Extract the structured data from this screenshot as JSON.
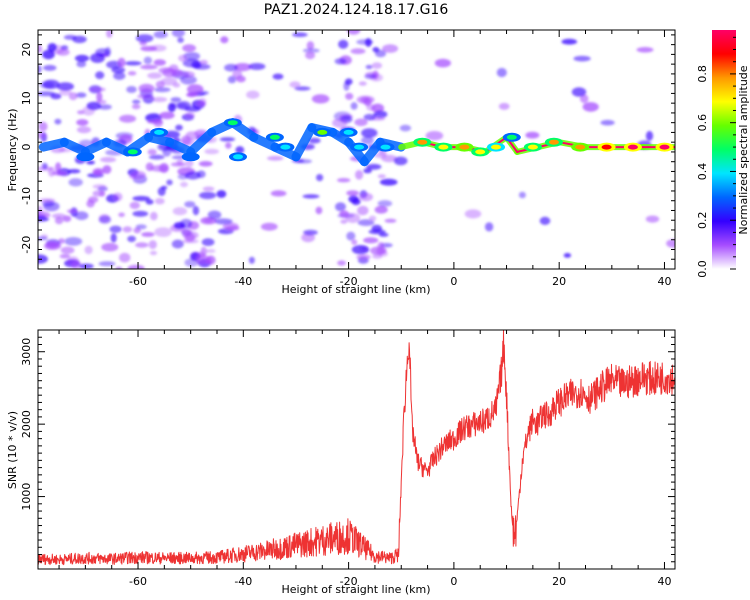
{
  "title": "PAZ1.2024.124.18.17.G16",
  "chart_data": [
    {
      "type": "heatmap",
      "xlabel": "Height of straight line (km)",
      "ylabel": "Frequency (Hz)",
      "xlim": [
        -79,
        42
      ],
      "ylim": [
        -25,
        24
      ],
      "xticks": [
        -60,
        -40,
        -20,
        0,
        20,
        40
      ],
      "yticks": [
        20,
        10,
        0,
        -10,
        -20
      ],
      "colorbar": {
        "label": "Normalized spectral amplitude",
        "range": [
          0,
          0.98
        ],
        "ticks": [
          0.0,
          0.2,
          0.4,
          0.6,
          0.8
        ],
        "colormap": [
          "#ffffff",
          "#a64dff",
          "#3300ff",
          "#0066ff",
          "#00e5ff",
          "#00ff66",
          "#66ff00",
          "#ffff00",
          "#ff9900",
          "#ff0000",
          "#ff0066"
        ]
      },
      "ridge": [
        {
          "x": -78,
          "y": 0
        },
        {
          "x": -74,
          "y": 1
        },
        {
          "x": -70,
          "y": -1
        },
        {
          "x": -66,
          "y": 1
        },
        {
          "x": -62,
          "y": -1
        },
        {
          "x": -58,
          "y": 2
        },
        {
          "x": -54,
          "y": 1
        },
        {
          "x": -50,
          "y": -1
        },
        {
          "x": -46,
          "y": 3
        },
        {
          "x": -42,
          "y": 5
        },
        {
          "x": -38,
          "y": 2
        },
        {
          "x": -34,
          "y": 0
        },
        {
          "x": -30,
          "y": -2
        },
        {
          "x": -27,
          "y": 4
        },
        {
          "x": -23,
          "y": 3
        },
        {
          "x": -20,
          "y": 1
        },
        {
          "x": -17,
          "y": -3
        },
        {
          "x": -14,
          "y": 1
        },
        {
          "x": -10,
          "y": 0
        },
        {
          "x": -6,
          "y": 1
        },
        {
          "x": -2,
          "y": 0
        },
        {
          "x": 2,
          "y": 0
        },
        {
          "x": 6,
          "y": -1
        },
        {
          "x": 10,
          "y": 2
        },
        {
          "x": 12,
          "y": -1
        },
        {
          "x": 16,
          "y": 0
        },
        {
          "x": 20,
          "y": 1
        },
        {
          "x": 25,
          "y": 0
        },
        {
          "x": 30,
          "y": 0
        },
        {
          "x": 36,
          "y": 0
        },
        {
          "x": 42,
          "y": 0
        }
      ],
      "blobs": [
        {
          "x": -70,
          "y": -2,
          "v": 0.32
        },
        {
          "x": -61,
          "y": -1,
          "v": 0.45
        },
        {
          "x": -56,
          "y": 3,
          "v": 0.4
        },
        {
          "x": -50,
          "y": -2,
          "v": 0.3
        },
        {
          "x": -42,
          "y": 5,
          "v": 0.5
        },
        {
          "x": -41,
          "y": -2,
          "v": 0.35
        },
        {
          "x": -34,
          "y": 2,
          "v": 0.45
        },
        {
          "x": -32,
          "y": 0,
          "v": 0.4
        },
        {
          "x": -25,
          "y": 3,
          "v": 0.55
        },
        {
          "x": -20,
          "y": 3,
          "v": 0.4
        },
        {
          "x": -18,
          "y": 0,
          "v": 0.35
        },
        {
          "x": -13,
          "y": 0,
          "v": 0.35
        },
        {
          "x": -6,
          "y": 1,
          "v": 0.78
        },
        {
          "x": -2,
          "y": 0,
          "v": 0.72
        },
        {
          "x": 2,
          "y": 0,
          "v": 0.8
        },
        {
          "x": 5,
          "y": -1,
          "v": 0.72
        },
        {
          "x": 8,
          "y": 0,
          "v": 0.65
        },
        {
          "x": 11,
          "y": 2,
          "v": 0.45
        },
        {
          "x": 15,
          "y": 0,
          "v": 0.72
        },
        {
          "x": 19,
          "y": 1,
          "v": 0.78
        },
        {
          "x": 24,
          "y": 0,
          "v": 0.82
        },
        {
          "x": 29,
          "y": 0,
          "v": 0.9
        },
        {
          "x": 34,
          "y": 0,
          "v": 0.95
        },
        {
          "x": 40,
          "y": 0,
          "v": 0.95
        }
      ]
    },
    {
      "type": "line",
      "xlabel": "Height of straight line (km)",
      "ylabel": "SNR (10 * v/v)",
      "xlim": [
        -79,
        42
      ],
      "ylim": [
        0,
        3300
      ],
      "xticks": [
        -60,
        -40,
        -20,
        0,
        20,
        40
      ],
      "yticks": [
        1000,
        2000,
        3000
      ],
      "series": [
        {
          "color": "#ee3333",
          "x": [
            -79,
            -75,
            -70,
            -65,
            -60,
            -55,
            -50,
            -45,
            -40,
            -35,
            -30,
            -25,
            -20,
            -15,
            -12,
            -10.5,
            -10,
            -9.5,
            -9,
            -8.5,
            -8,
            -7,
            -6,
            -5,
            -4,
            -2,
            0,
            2,
            4,
            6,
            8,
            9,
            9.5,
            10,
            10.5,
            11,
            11.5,
            12,
            12.5,
            13,
            14,
            15,
            16,
            17,
            18,
            19,
            20,
            22,
            24,
            26,
            28,
            30,
            32,
            34,
            36,
            38,
            40,
            42
          ],
          "y": [
            140,
            130,
            150,
            140,
            160,
            150,
            150,
            160,
            210,
            260,
            330,
            400,
            460,
            180,
            150,
            200,
            1200,
            2100,
            2700,
            3250,
            2000,
            1500,
            1400,
            1350,
            1500,
            1700,
            1800,
            1950,
            2000,
            2050,
            2200,
            2700,
            3100,
            2400,
            1500,
            700,
            450,
            700,
            1100,
            1500,
            1850,
            2050,
            2000,
            2150,
            2100,
            2250,
            2300,
            2400,
            2450,
            2350,
            2500,
            2600,
            2550,
            2600,
            2650,
            2620,
            2650,
            2650
          ]
        }
      ]
    }
  ]
}
